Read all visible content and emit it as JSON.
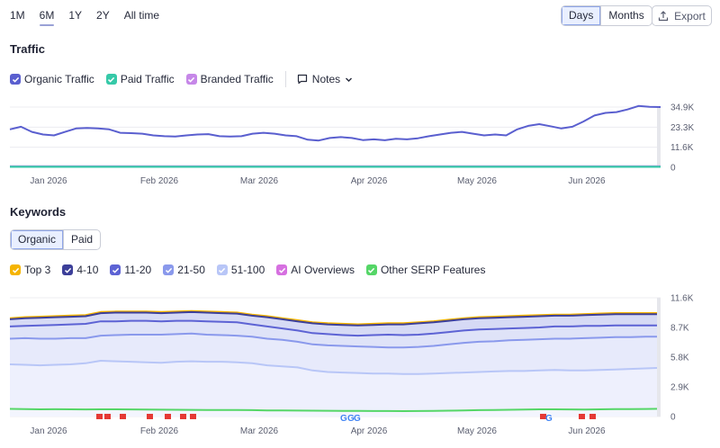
{
  "range_tabs": [
    {
      "label": "1M",
      "active": false
    },
    {
      "label": "6M",
      "active": true
    },
    {
      "label": "1Y",
      "active": false
    },
    {
      "label": "2Y",
      "active": false
    },
    {
      "label": "All time",
      "active": false
    }
  ],
  "granularity": {
    "days": "Days",
    "months": "Months",
    "selected": "Days"
  },
  "export_label": "Export",
  "traffic": {
    "title": "Traffic",
    "legend": [
      {
        "label": "Organic Traffic",
        "color": "#5a5fcf"
      },
      {
        "label": "Paid Traffic",
        "color": "#36c9a8"
      },
      {
        "label": "Branded Traffic",
        "color": "#c687e8"
      }
    ],
    "notes_label": "Notes"
  },
  "keywords": {
    "title": "Keywords",
    "tabs": {
      "organic": "Organic",
      "paid": "Paid",
      "selected": "Organic"
    },
    "legend": [
      {
        "label": "Top 3",
        "color": "#f5b400"
      },
      {
        "label": "4-10",
        "color": "#3c3f99"
      },
      {
        "label": "11-20",
        "color": "#5d63d4"
      },
      {
        "label": "21-50",
        "color": "#8a99ec"
      },
      {
        "label": "51-100",
        "color": "#b8c6f7"
      },
      {
        "label": "AI Overviews",
        "color": "#d670e0"
      },
      {
        "label": "Other SERP Features",
        "color": "#55d667"
      }
    ]
  },
  "chart_data": [
    {
      "type": "line",
      "title": "Traffic",
      "x_labels": [
        "Jan 2026",
        "Feb 2026",
        "Mar 2026",
        "Apr 2026",
        "May 2026",
        "Jun 2026"
      ],
      "y_ticks": [
        "0",
        "11.6K",
        "23.3K",
        "34.9K"
      ],
      "ylim": [
        0,
        34900
      ],
      "grid": true,
      "series": [
        {
          "name": "Organic Traffic",
          "color": "#5a5fcf",
          "values": [
            22000,
            23500,
            20500,
            19000,
            18500,
            20500,
            22500,
            22800,
            22500,
            22000,
            20000,
            19800,
            19500,
            18500,
            18000,
            17800,
            18500,
            19000,
            19200,
            18000,
            17800,
            18000,
            19500,
            20000,
            19500,
            18500,
            18000,
            16000,
            15500,
            17000,
            17500,
            17000,
            15800,
            16200,
            15700,
            16500,
            16200,
            16800,
            18000,
            19000,
            20000,
            20500,
            19500,
            18500,
            19000,
            18500,
            22000,
            24000,
            25000,
            23800,
            22500,
            23500,
            26500,
            30000,
            31500,
            32000,
            33500,
            35500,
            35000,
            34900
          ]
        },
        {
          "name": "Paid Traffic",
          "color": "#36c9a8",
          "values": [
            300,
            300,
            300,
            300,
            300,
            300,
            300,
            300,
            300,
            300,
            300,
            300,
            300,
            300,
            300,
            300,
            300,
            300,
            300,
            300,
            300,
            300,
            300,
            300,
            300,
            300,
            300,
            300,
            300,
            300,
            300,
            300,
            300,
            300,
            300,
            300,
            300,
            300,
            300,
            300,
            300,
            300,
            300,
            300,
            300,
            300,
            300,
            300,
            300,
            300,
            300,
            300,
            300,
            300,
            300,
            300,
            300,
            300,
            300,
            300
          ]
        },
        {
          "name": "Branded Traffic",
          "color": "#c687e8",
          "values": [
            600,
            600,
            600,
            600,
            600,
            600,
            600,
            600,
            600,
            600,
            600,
            600,
            600,
            600,
            600,
            600,
            600,
            600,
            600,
            600,
            600,
            600,
            600,
            600,
            600,
            600,
            600,
            600,
            600,
            600,
            600,
            600,
            600,
            600,
            600,
            600,
            600,
            600,
            600,
            600,
            600,
            600,
            600,
            600,
            600,
            600,
            600,
            600,
            600,
            600,
            600,
            600,
            600,
            600,
            600,
            600,
            600,
            600,
            600,
            600
          ]
        }
      ]
    },
    {
      "type": "area",
      "title": "Keywords",
      "x_labels": [
        "Jan 2026",
        "Feb 2026",
        "Mar 2026",
        "Apr 2026",
        "May 2026",
        "Jun 2026"
      ],
      "y_ticks": [
        "0",
        "2.9K",
        "5.8K",
        "8.7K",
        "11.6K"
      ],
      "ylim": [
        0,
        11600
      ],
      "grid": true,
      "stacked": true,
      "series": [
        {
          "name": "Other SERP Features",
          "color": "#55d667",
          "values": [
            750,
            720,
            700,
            710,
            700,
            690,
            700,
            700,
            690,
            680,
            670,
            660,
            650,
            640,
            640,
            630,
            620,
            600,
            590,
            580,
            570,
            560,
            550,
            550,
            540,
            540,
            530,
            540,
            550,
            570,
            600,
            620,
            640,
            660,
            680,
            700,
            700,
            690,
            680,
            700,
            720,
            730,
            740,
            760
          ]
        },
        {
          "name": "51-100",
          "values": [
            5100,
            5050,
            5000,
            5050,
            5100,
            5200,
            5450,
            5400,
            5350,
            5300,
            5250,
            5350,
            5400,
            5350,
            5350,
            5300,
            5200,
            5000,
            4900,
            4800,
            4500,
            4350,
            4300,
            4250,
            4200,
            4200,
            4150,
            4150,
            4200,
            4250,
            4300,
            4350,
            4400,
            4450,
            4450,
            4500,
            4550,
            4500,
            4500,
            4550,
            4600,
            4650,
            4700,
            4750
          ]
        },
        {
          "name": "21-50",
          "values": [
            7600,
            7650,
            7600,
            7600,
            7650,
            7650,
            7900,
            7950,
            8000,
            8000,
            8000,
            8050,
            8100,
            8000,
            7950,
            7900,
            7800,
            7600,
            7500,
            7300,
            7050,
            6950,
            6900,
            6850,
            6800,
            6750,
            6750,
            6800,
            6900,
            7050,
            7200,
            7300,
            7350,
            7450,
            7500,
            7550,
            7600,
            7600,
            7650,
            7700,
            7750,
            7750,
            7800,
            7800
          ]
        },
        {
          "name": "11-20",
          "values": [
            8800,
            8850,
            8900,
            8950,
            9000,
            9050,
            9300,
            9300,
            9350,
            9350,
            9300,
            9350,
            9350,
            9300,
            9250,
            9200,
            9000,
            8800,
            8600,
            8400,
            8150,
            8050,
            7950,
            7900,
            7950,
            8000,
            7950,
            8000,
            8100,
            8250,
            8400,
            8500,
            8550,
            8600,
            8650,
            8700,
            8800,
            8800,
            8850,
            8850,
            8900,
            8900,
            8900,
            8900
          ]
        },
        {
          "name": "4-10",
          "values": [
            9500,
            9600,
            9650,
            9700,
            9750,
            9800,
            10100,
            10150,
            10150,
            10150,
            10100,
            10150,
            10200,
            10150,
            10100,
            10050,
            9850,
            9700,
            9500,
            9300,
            9100,
            9000,
            8950,
            8900,
            8950,
            9000,
            9000,
            9100,
            9200,
            9350,
            9500,
            9600,
            9650,
            9700,
            9750,
            9800,
            9850,
            9850,
            9900,
            9950,
            10000,
            10000,
            10000,
            10000
          ]
        },
        {
          "name": "Top 3",
          "color": "#f5b400",
          "values": [
            9600,
            9700,
            9750,
            9800,
            9850,
            9900,
            10200,
            10250,
            10250,
            10250,
            10200,
            10250,
            10300,
            10250,
            10200,
            10150,
            9950,
            9800,
            9600,
            9400,
            9200,
            9100,
            9050,
            9000,
            9050,
            9100,
            9100,
            9200,
            9300,
            9450,
            9600,
            9700,
            9750,
            9800,
            9850,
            9900,
            9950,
            9950,
            10000,
            10050,
            10100,
            10100,
            10100,
            10100
          ]
        }
      ]
    }
  ]
}
